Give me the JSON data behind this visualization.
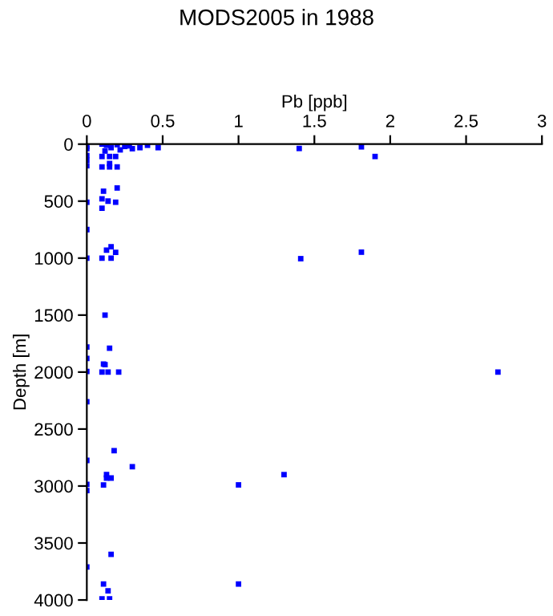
{
  "chart_data": {
    "type": "scatter",
    "title": "MODS2005 in 1988",
    "xlabel": "Pb [ppb]",
    "ylabel": "Depth [m]",
    "series": [
      {
        "color": "#0000ff",
        "x": [
          0,
          0,
          0,
          0,
          0,
          0.1,
          0.13,
          0.16,
          0.2,
          0.25,
          0.3,
          0.35,
          0.4,
          0.47,
          0.12,
          0.22,
          0.28,
          1.4,
          1.81,
          1.9,
          0.1,
          0.15,
          0.19,
          0.1,
          0.15,
          0.2,
          0.15,
          0.2,
          0.11,
          0.1,
          0.14,
          0.19,
          0,
          0.1,
          0,
          0.16,
          0.13,
          0.19,
          0.1,
          0.16,
          0,
          1.41,
          1.81,
          0.12,
          0,
          0.15,
          0,
          0.11,
          0,
          0.12,
          0.1,
          0.14,
          0.21,
          2.71,
          0,
          0.18,
          0,
          0.3,
          0.13,
          1.3,
          0.13,
          0.16,
          0,
          0.11,
          1.0,
          0,
          0.16,
          0,
          0.11,
          1.0,
          0.14,
          0.1,
          0.15
        ],
        "values": [
          20,
          40,
          100,
          140,
          190,
          0,
          10,
          30,
          5,
          20,
          40,
          30,
          10,
          30,
          60,
          50,
          15,
          38,
          24,
          108,
          108,
          108,
          108,
          200,
          170,
          200,
          200,
          385,
          413,
          480,
          500,
          510,
          510,
          563,
          750,
          900,
          930,
          950,
          1000,
          1000,
          1000,
          1005,
          948,
          1500,
          1780,
          1790,
          1880,
          1930,
          1995,
          1935,
          2000,
          2000,
          2000,
          2000,
          2260,
          2690,
          2775,
          2830,
          2900,
          2900,
          2930,
          2930,
          2985,
          2990,
          2990,
          3040,
          3600,
          3710,
          3860,
          3860,
          3920,
          3990,
          3990
        ]
      }
    ],
    "marker": "square",
    "xlim": [
      0,
      3
    ],
    "xticks": [
      0,
      0.5,
      1,
      1.5,
      2,
      2.5,
      3
    ],
    "ylim": [
      4000,
      0
    ],
    "yticks": [
      0,
      500,
      1000,
      1500,
      2000,
      2500,
      3000,
      3500,
      4000
    ],
    "grid": false,
    "legend": false
  }
}
